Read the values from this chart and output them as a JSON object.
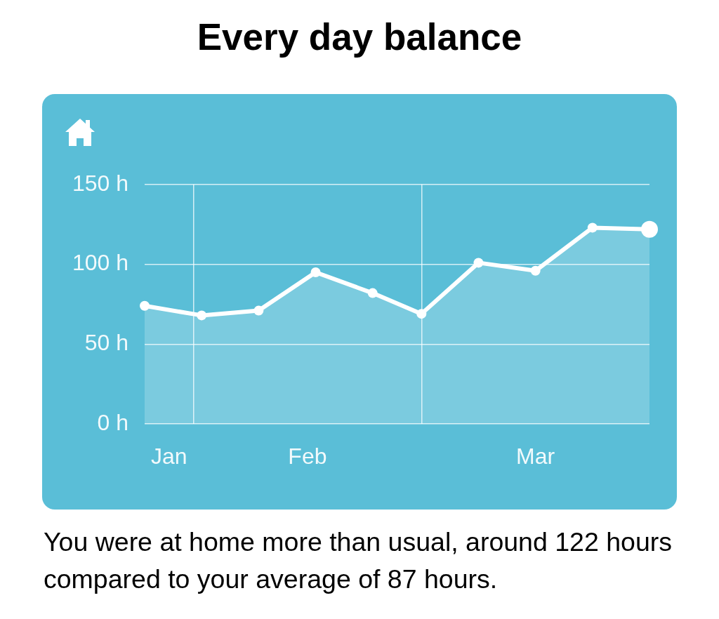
{
  "chart_data": {
    "type": "area",
    "title": "Every day balance",
    "x": [
      "--01-26",
      "--02-02",
      "--02-09",
      "--02-16",
      "--02-23",
      "--03-01",
      "--03-08",
      "--03-15",
      "--03-22",
      "--03-29"
    ],
    "series": [
      {
        "color": "#ffffff",
        "values": [
          74,
          68,
          71,
          95,
          82,
          69,
          101,
          96,
          123,
          122
        ]
      }
    ],
    "xlim": [
      "--01-26",
      "--03-29"
    ],
    "xticks": [
      {
        "value": "--01-29",
        "label": "Jan"
      },
      {
        "value": "--02-01",
        "label": null
      },
      {
        "value": "--02-15",
        "label": "Feb"
      },
      {
        "value": "--03-01",
        "label": null
      },
      {
        "value": "--03-15",
        "label": "Mar"
      }
    ],
    "ylim": [
      0,
      150
    ],
    "yticks": [
      {
        "value": 0,
        "label": "0 h"
      },
      {
        "value": 50,
        "label": "50 h"
      },
      {
        "value": 100,
        "label": "100 h"
      },
      {
        "value": 150,
        "label": "150 h"
      }
    ],
    "grid": true,
    "legend": false,
    "marker": "circle",
    "line_style": "solid",
    "annotations": [
      "You were at home more than usual, around 122 hours compared to your average of 87 hours."
    ]
  }
}
